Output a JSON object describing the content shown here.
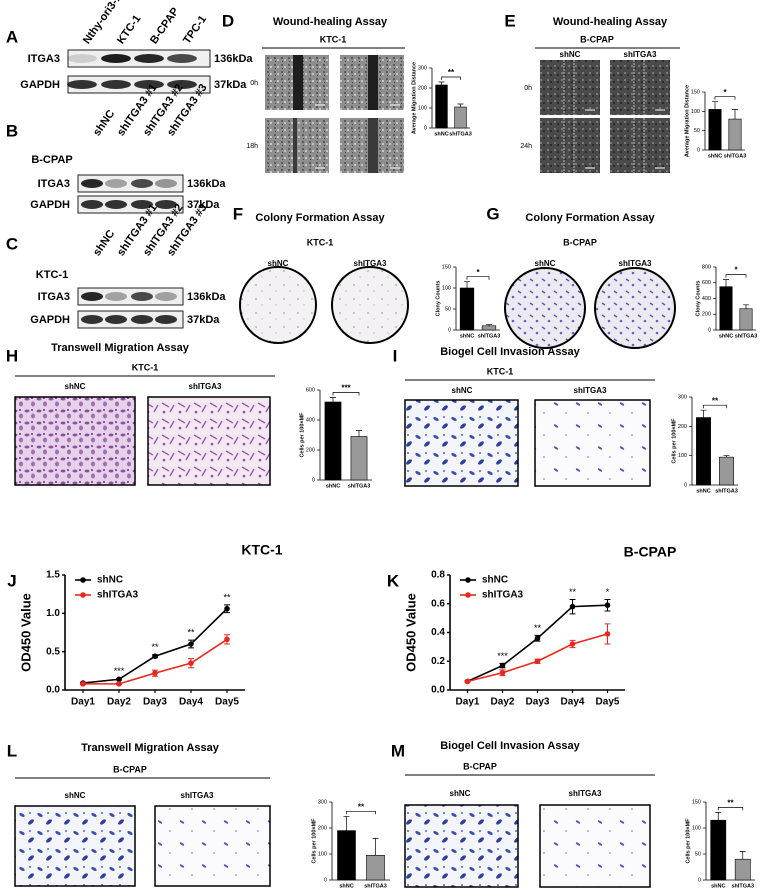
{
  "panels": {
    "A": {
      "label": "A",
      "lanes": [
        "Nthy-ori3-1",
        "KTC-1",
        "B-CPAP",
        "TPC-1"
      ],
      "rows": [
        {
          "name": "ITGA3",
          "size": "136kDa"
        },
        {
          "name": "GAPDH",
          "size": "37kDa"
        }
      ]
    },
    "B": {
      "label": "B",
      "cell_line": "B-CPAP",
      "lanes": [
        "shNC",
        "shITGA3 #1",
        "shITGA3 #2",
        "shITGA3 #3"
      ],
      "rows": [
        {
          "name": "ITGA3",
          "size": "136kDa"
        },
        {
          "name": "GAPDH",
          "size": "37kDa"
        }
      ]
    },
    "C": {
      "label": "C",
      "cell_line": "KTC-1",
      "lanes": [
        "shNC",
        "shITGA3 #1",
        "shITGA3 #2",
        "shITGA3 #3"
      ],
      "rows": [
        {
          "name": "ITGA3",
          "size": "136kDa"
        },
        {
          "name": "GAPDH",
          "size": "37kDa"
        }
      ]
    },
    "D": {
      "label": "D",
      "title": "Wound-healing Assay",
      "cell_line": "KTC-1",
      "rows": [
        "0h",
        "18h"
      ]
    },
    "E": {
      "label": "E",
      "title": "Wound-healing Assay",
      "cell_line": "B-CPAP",
      "columns": [
        "shNC",
        "shITGA3"
      ],
      "rows": [
        "0h",
        "24h"
      ]
    },
    "F": {
      "label": "F",
      "title": "Colony Formation Assay",
      "cell_line": "KTC-1",
      "columns": [
        "shNC",
        "shITGA3"
      ]
    },
    "G": {
      "label": "G",
      "title": "Colony Formation Assay",
      "cell_line": "B-CPAP",
      "columns": [
        "shNC",
        "shITGA3"
      ]
    },
    "H": {
      "label": "H",
      "title": "Transwell Migration Assay",
      "cell_line": "KTC-1",
      "columns": [
        "shNC",
        "shITGA3"
      ]
    },
    "I": {
      "label": "I",
      "title": "Biogel Cell Invasion Assay",
      "cell_line": "KTC-1",
      "columns": [
        "shNC",
        "shITGA3"
      ]
    },
    "J": {
      "label": "J"
    },
    "K": {
      "label": "K"
    },
    "L": {
      "label": "L",
      "title": "Transwell Migration Assay",
      "cell_line": "B-CPAP",
      "columns": [
        "shNC",
        "shITGA3"
      ]
    },
    "M": {
      "label": "M",
      "title": "Biogel Cell Invasion Assay",
      "cell_line": "B-CPAP",
      "columns": [
        "shNC",
        "shITGA3"
      ]
    }
  },
  "chart_data": [
    {
      "type": "bar",
      "ylabel": "Average Migration Distance",
      "categories": [
        "shNC",
        "shITGA3"
      ],
      "values": [
        215,
        105
      ],
      "errors": [
        15,
        15
      ],
      "colors": [
        "#000000",
        "#999999"
      ],
      "ylim": [
        0,
        300
      ],
      "yticks": [
        0,
        100,
        200,
        300
      ],
      "significance": "**"
    },
    {
      "type": "bar",
      "ylabel": "Average Migration Distance",
      "categories": [
        "shNC",
        "shITGA3"
      ],
      "values": [
        105,
        80
      ],
      "errors": [
        20,
        25
      ],
      "colors": [
        "#000000",
        "#999999"
      ],
      "ylim": [
        0,
        150
      ],
      "yticks": [
        0,
        50,
        100,
        150
      ],
      "significance": "*"
    },
    {
      "type": "bar",
      "ylabel": "Clony Counts",
      "categories": [
        "shNC",
        "shITGA3"
      ],
      "values": [
        100,
        10
      ],
      "errors": [
        15,
        3
      ],
      "colors": [
        "#000000",
        "#999999"
      ],
      "ylim": [
        0,
        150
      ],
      "yticks": [
        0,
        50,
        100,
        150
      ],
      "significance": "*"
    },
    {
      "type": "bar",
      "ylabel": "Clony Counts",
      "categories": [
        "shNC",
        "shITGA3"
      ],
      "values": [
        550,
        270
      ],
      "errors": [
        90,
        50
      ],
      "colors": [
        "#000000",
        "#999999"
      ],
      "ylim": [
        0,
        800
      ],
      "yticks": [
        0,
        200,
        400,
        600,
        800
      ],
      "significance": "*"
    },
    {
      "type": "bar",
      "ylabel": "Cells per 100×MF",
      "categories": [
        "shNC",
        "shITGA3"
      ],
      "values": [
        520,
        290
      ],
      "errors": [
        30,
        40
      ],
      "colors": [
        "#000000",
        "#999999"
      ],
      "ylim": [
        0,
        600
      ],
      "yticks": [
        0,
        200,
        400,
        600
      ],
      "significance": "***"
    },
    {
      "type": "bar",
      "ylabel": "Cells per 100×MF",
      "categories": [
        "shNC",
        "shITGA3"
      ],
      "values": [
        230,
        95
      ],
      "errors": [
        25,
        5
      ],
      "colors": [
        "#000000",
        "#999999"
      ],
      "ylim": [
        0,
        300
      ],
      "yticks": [
        0,
        100,
        200,
        300
      ],
      "significance": "**"
    },
    {
      "type": "line",
      "title": "KTC-1",
      "ylabel": "OD450 Value",
      "categories": [
        "Day1",
        "Day2",
        "Day3",
        "Day4",
        "Day5"
      ],
      "series": [
        {
          "name": "shNC",
          "color": "#000000",
          "values": [
            0.09,
            0.14,
            0.44,
            0.6,
            1.06
          ],
          "errors": [
            0.01,
            0.01,
            0.02,
            0.05,
            0.05
          ]
        },
        {
          "name": "shITGA3",
          "color": "#e8281e",
          "values": [
            0.08,
            0.08,
            0.22,
            0.35,
            0.66
          ],
          "errors": [
            0.01,
            0.01,
            0.04,
            0.06,
            0.06
          ]
        }
      ],
      "annotations": [
        null,
        "***",
        "**",
        "**",
        "**"
      ],
      "ylim": [
        0,
        1.5
      ],
      "yticks": [
        {
          "value": 0,
          "label": "0.0"
        },
        0.5,
        {
          "value": 1,
          "label": "1.0"
        },
        1.5
      ]
    },
    {
      "type": "line",
      "title": "B-CPAP",
      "ylabel": "OD450 Value",
      "categories": [
        "Day1",
        "Day2",
        "Day3",
        "Day4",
        "Day5"
      ],
      "series": [
        {
          "name": "shNC",
          "color": "#000000",
          "values": [
            0.06,
            0.17,
            0.36,
            0.58,
            0.59
          ],
          "errors": [
            0.005,
            0.015,
            0.02,
            0.05,
            0.04
          ]
        },
        {
          "name": "shITGA3",
          "color": "#e8281e",
          "values": [
            0.06,
            0.12,
            0.2,
            0.32,
            0.39
          ],
          "errors": [
            0.005,
            0.02,
            0.015,
            0.025,
            0.07
          ]
        }
      ],
      "annotations": [
        null,
        "***",
        "**",
        "**",
        "*"
      ],
      "ylim": [
        0,
        0.8
      ],
      "yticks": [
        {
          "value": 0,
          "label": "0.0"
        },
        0.2,
        0.4,
        0.6,
        0.8
      ]
    },
    {
      "type": "bar",
      "ylabel": "Cells per 100×MF",
      "categories": [
        "shNC",
        "shITGA3"
      ],
      "values": [
        190,
        95
      ],
      "errors": [
        55,
        65
      ],
      "colors": [
        "#000000",
        "#999999"
      ],
      "ylim": [
        0,
        300
      ],
      "yticks": [
        0,
        100,
        200,
        300
      ],
      "significance": "**"
    },
    {
      "type": "bar",
      "ylabel": "Cells per 100×MF",
      "categories": [
        "shNC",
        "shITGA3"
      ],
      "values": [
        115,
        40
      ],
      "errors": [
        15,
        15
      ],
      "colors": [
        "#000000",
        "#999999"
      ],
      "ylim": [
        0,
        150
      ],
      "yticks": [
        0,
        50,
        100,
        150
      ],
      "significance": "**"
    }
  ]
}
